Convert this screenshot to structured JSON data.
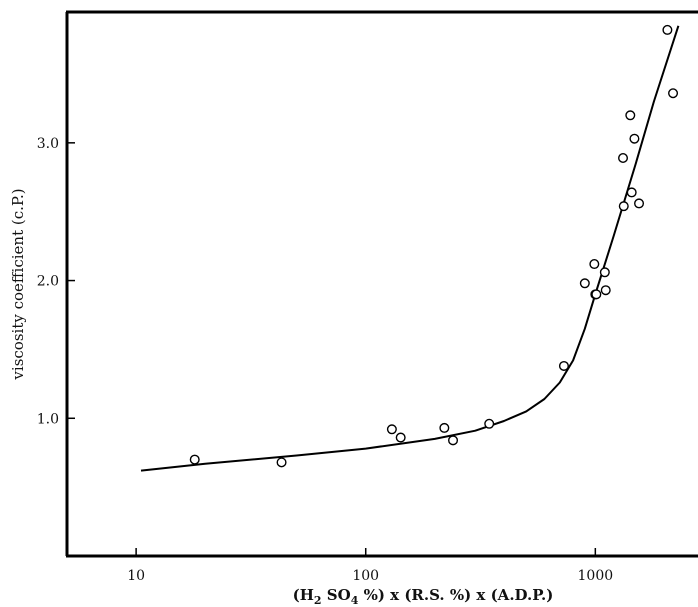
{
  "chart_data": {
    "type": "scatter",
    "xscale": "log",
    "xlim": [
      5,
      2800
    ],
    "ylim": [
      0,
      3.95
    ],
    "xticks": [
      10,
      100,
      1000
    ],
    "xtick_labels": [
      "10",
      "100",
      "1000"
    ],
    "yticks": [
      1.0,
      2.0,
      3.0
    ],
    "ytick_labels": [
      "1.0",
      "2.0",
      "3.0"
    ],
    "xlabel_parts": [
      "(H",
      "2",
      " SO",
      "4",
      " %) x (R.S. %) x (A.D.P.)"
    ],
    "ylabel": "viscosity coefficient  (c.P.)",
    "grid": false,
    "series": [
      {
        "marker": "open-circle",
        "x": [
          18,
          43,
          130,
          142,
          220,
          240,
          345,
          730,
          900,
          990,
          1000,
          1010,
          1100,
          1110,
          1320,
          1330,
          1420,
          1440,
          1480,
          1550,
          2060,
          2180
        ],
        "y": [
          0.7,
          0.68,
          0.92,
          0.86,
          0.93,
          0.84,
          0.96,
          1.38,
          1.98,
          2.12,
          1.9,
          1.9,
          2.06,
          1.93,
          2.89,
          2.54,
          3.2,
          2.64,
          3.03,
          2.56,
          3.82,
          3.36
        ]
      },
      {
        "marker": "line",
        "x": [
          10.5,
          20,
          50,
          100,
          200,
          300,
          400,
          500,
          600,
          700,
          800,
          900,
          1000,
          1200,
          1500,
          1800,
          2300
        ],
        "y": [
          0.62,
          0.67,
          0.73,
          0.78,
          0.85,
          0.91,
          0.98,
          1.05,
          1.14,
          1.26,
          1.42,
          1.65,
          1.9,
          2.32,
          2.85,
          3.3,
          3.85
        ]
      }
    ]
  }
}
